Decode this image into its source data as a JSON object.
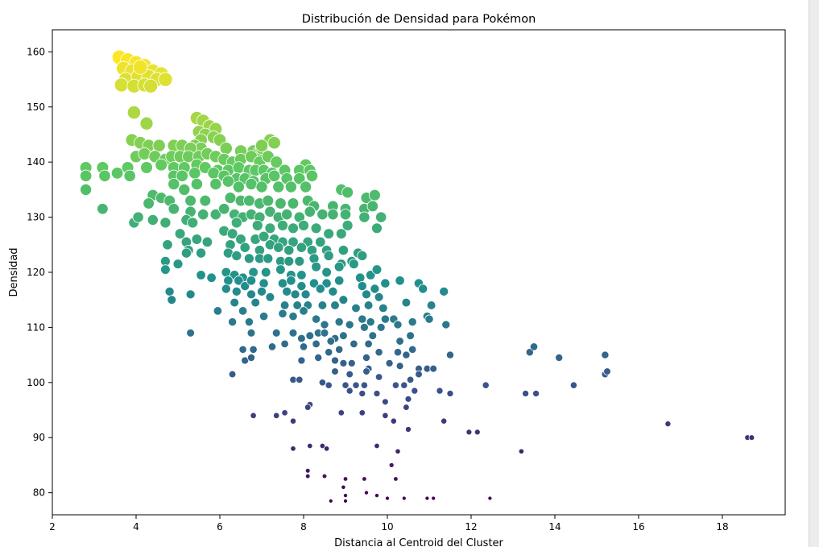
{
  "chart_data": {
    "type": "scatter",
    "title": "Distribución de Densidad para Pokémon",
    "xlabel": "Distancia al Centroid del Cluster",
    "ylabel": "Densidad",
    "xlim": [
      2,
      19.5
    ],
    "ylim": [
      76,
      164
    ],
    "xticks": [
      2,
      4,
      6,
      8,
      10,
      12,
      14,
      16,
      18
    ],
    "yticks": [
      80,
      90,
      100,
      110,
      120,
      130,
      140,
      150,
      160
    ],
    "grid": false,
    "legend": "none",
    "colormap": "viridis",
    "color_encodes": "y",
    "size_encodes": "y",
    "points": [
      [
        3.6,
        159
      ],
      [
        3.8,
        158.5
      ],
      [
        4.0,
        158
      ],
      [
        4.2,
        157.5
      ],
      [
        3.7,
        157
      ],
      [
        3.9,
        156.5
      ],
      [
        4.4,
        156.5
      ],
      [
        4.6,
        156
      ],
      [
        3.75,
        155
      ],
      [
        4.05,
        155.5
      ],
      [
        4.3,
        155.5
      ],
      [
        4.5,
        155
      ],
      [
        3.65,
        154
      ],
      [
        3.95,
        153.8
      ],
      [
        4.2,
        154
      ],
      [
        4.7,
        155
      ],
      [
        4.1,
        157.2
      ],
      [
        4.35,
        153.8
      ],
      [
        3.95,
        149
      ],
      [
        4.25,
        147
      ],
      [
        5.45,
        148
      ],
      [
        5.6,
        147.5
      ],
      [
        5.75,
        146.5
      ],
      [
        5.9,
        146
      ],
      [
        5.5,
        145.5
      ],
      [
        5.65,
        145
      ],
      [
        5.85,
        144.5
      ],
      [
        5.55,
        144
      ],
      [
        6.0,
        144
      ],
      [
        7.2,
        144
      ],
      [
        5.4,
        143
      ],
      [
        5.55,
        142.5
      ],
      [
        3.9,
        144
      ],
      [
        4.1,
        143.5
      ],
      [
        4.3,
        143
      ],
      [
        4.55,
        143
      ],
      [
        4.9,
        143
      ],
      [
        5.1,
        143
      ],
      [
        5.3,
        142.5
      ],
      [
        6.15,
        142.5
      ],
      [
        6.5,
        142
      ],
      [
        6.8,
        142
      ],
      [
        6.95,
        142
      ],
      [
        7.0,
        142.5
      ],
      [
        7.3,
        143.5
      ],
      [
        7.0,
        143
      ],
      [
        4.0,
        141
      ],
      [
        4.2,
        141.5
      ],
      [
        4.45,
        141
      ],
      [
        4.7,
        140.5
      ],
      [
        4.85,
        141
      ],
      [
        5.05,
        141
      ],
      [
        5.25,
        141
      ],
      [
        5.5,
        141
      ],
      [
        5.7,
        141.5
      ],
      [
        5.9,
        141
      ],
      [
        6.1,
        140.5
      ],
      [
        6.3,
        140
      ],
      [
        6.5,
        140.5
      ],
      [
        6.75,
        141
      ],
      [
        6.95,
        140
      ],
      [
        7.15,
        141
      ],
      [
        7.35,
        140
      ],
      [
        8.05,
        139.5
      ],
      [
        2.8,
        139
      ],
      [
        3.2,
        139
      ],
      [
        3.8,
        139
      ],
      [
        4.25,
        139
      ],
      [
        4.6,
        139.5
      ],
      [
        4.9,
        139
      ],
      [
        5.15,
        139
      ],
      [
        5.45,
        139.5
      ],
      [
        5.65,
        139
      ],
      [
        5.95,
        138.5
      ],
      [
        6.2,
        138.5
      ],
      [
        6.45,
        139
      ],
      [
        6.7,
        138.5
      ],
      [
        6.85,
        138.5
      ],
      [
        7.05,
        138.5
      ],
      [
        7.25,
        138
      ],
      [
        7.55,
        138.5
      ],
      [
        7.9,
        138.5
      ],
      [
        8.15,
        138.5
      ],
      [
        2.8,
        137.5
      ],
      [
        3.25,
        137.5
      ],
      [
        3.55,
        138
      ],
      [
        3.85,
        137.5
      ],
      [
        4.9,
        137.5
      ],
      [
        5.1,
        137.5
      ],
      [
        5.4,
        138
      ],
      [
        5.85,
        138
      ],
      [
        6.1,
        137.5
      ],
      [
        6.4,
        137
      ],
      [
        6.6,
        137
      ],
      [
        6.8,
        136.5
      ],
      [
        7.1,
        137
      ],
      [
        7.3,
        137.5
      ],
      [
        7.6,
        137
      ],
      [
        7.9,
        137
      ],
      [
        8.2,
        137.5
      ],
      [
        2.8,
        135
      ],
      [
        4.9,
        136
      ],
      [
        5.15,
        135
      ],
      [
        5.45,
        136
      ],
      [
        5.9,
        136
      ],
      [
        6.2,
        136.5
      ],
      [
        6.45,
        135.5
      ],
      [
        6.75,
        136
      ],
      [
        7.0,
        135.5
      ],
      [
        7.4,
        135.5
      ],
      [
        7.7,
        135.5
      ],
      [
        8.05,
        135.5
      ],
      [
        8.9,
        135
      ],
      [
        9.05,
        134.5
      ],
      [
        9.5,
        133.5
      ],
      [
        9.7,
        134
      ],
      [
        4.4,
        134
      ],
      [
        4.6,
        133.5
      ],
      [
        4.8,
        133
      ],
      [
        5.3,
        133
      ],
      [
        5.65,
        133
      ],
      [
        6.25,
        133.5
      ],
      [
        6.5,
        133
      ],
      [
        6.7,
        133
      ],
      [
        6.95,
        132.5
      ],
      [
        7.15,
        133
      ],
      [
        7.45,
        132.5
      ],
      [
        7.75,
        132.5
      ],
      [
        8.1,
        133
      ],
      [
        8.25,
        132
      ],
      [
        8.7,
        132
      ],
      [
        9.0,
        131.5
      ],
      [
        9.45,
        131.5
      ],
      [
        9.65,
        132
      ],
      [
        3.2,
        131.5
      ],
      [
        4.3,
        132.5
      ],
      [
        4.9,
        131.5
      ],
      [
        5.3,
        131
      ],
      [
        5.6,
        130.5
      ],
      [
        5.9,
        130.5
      ],
      [
        6.1,
        131.5
      ],
      [
        6.35,
        130.5
      ],
      [
        6.55,
        130
      ],
      [
        6.75,
        130.5
      ],
      [
        6.95,
        130
      ],
      [
        7.2,
        131
      ],
      [
        7.4,
        130
      ],
      [
        7.6,
        130.5
      ],
      [
        7.9,
        130
      ],
      [
        8.15,
        131
      ],
      [
        8.45,
        130.5
      ],
      [
        8.7,
        130.5
      ],
      [
        9.0,
        130.5
      ],
      [
        9.45,
        130
      ],
      [
        9.85,
        130
      ],
      [
        3.95,
        129
      ],
      [
        4.05,
        130
      ],
      [
        4.4,
        129.5
      ],
      [
        4.7,
        129
      ],
      [
        5.2,
        129.5
      ],
      [
        5.35,
        129
      ],
      [
        6.4,
        129
      ],
      [
        6.9,
        128.5
      ],
      [
        7.2,
        128
      ],
      [
        7.5,
        128.5
      ],
      [
        7.75,
        128
      ],
      [
        8.0,
        128.5
      ],
      [
        8.3,
        128
      ],
      [
        9.05,
        128.5
      ],
      [
        9.75,
        128
      ],
      [
        5.05,
        127
      ],
      [
        6.1,
        127.5
      ],
      [
        6.3,
        127
      ],
      [
        6.5,
        126
      ],
      [
        6.85,
        126
      ],
      [
        7.05,
        126.5
      ],
      [
        7.3,
        126
      ],
      [
        7.5,
        125.5
      ],
      [
        7.75,
        125.5
      ],
      [
        8.1,
        125.5
      ],
      [
        8.4,
        125.5
      ],
      [
        8.6,
        127
      ],
      [
        8.9,
        127
      ],
      [
        4.75,
        125
      ],
      [
        5.2,
        125.5
      ],
      [
        5.45,
        126
      ],
      [
        5.7,
        125.5
      ],
      [
        6.25,
        125
      ],
      [
        6.6,
        124.5
      ],
      [
        6.95,
        124
      ],
      [
        7.2,
        125
      ],
      [
        7.4,
        124.5
      ],
      [
        7.65,
        124
      ],
      [
        7.95,
        124.5
      ],
      [
        8.2,
        124
      ],
      [
        8.55,
        124
      ],
      [
        8.95,
        124
      ],
      [
        9.3,
        123.5
      ],
      [
        5.25,
        124
      ],
      [
        5.55,
        123.5
      ],
      [
        6.2,
        123.5
      ],
      [
        6.4,
        123
      ],
      [
        6.7,
        122.5
      ],
      [
        6.95,
        122.5
      ],
      [
        7.15,
        122.5
      ],
      [
        7.45,
        122
      ],
      [
        7.65,
        122
      ],
      [
        7.9,
        122
      ],
      [
        8.25,
        122.5
      ],
      [
        8.6,
        123
      ],
      [
        8.9,
        121.5
      ],
      [
        9.15,
        122
      ],
      [
        9.4,
        123
      ],
      [
        4.7,
        122
      ],
      [
        4.7,
        120.5
      ],
      [
        5.0,
        121.5
      ],
      [
        5.2,
        123.5
      ],
      [
        5.55,
        119.5
      ],
      [
        6.15,
        120
      ],
      [
        6.35,
        119.5
      ],
      [
        6.55,
        119
      ],
      [
        6.8,
        120
      ],
      [
        7.1,
        120
      ],
      [
        7.45,
        120.5
      ],
      [
        7.7,
        119.5
      ],
      [
        7.95,
        119.5
      ],
      [
        8.3,
        121
      ],
      [
        8.55,
        120
      ],
      [
        8.85,
        121
      ],
      [
        9.2,
        121.5
      ],
      [
        9.35,
        119
      ],
      [
        9.6,
        119.5
      ],
      [
        9.75,
        120.5
      ],
      [
        9.95,
        118
      ],
      [
        10.3,
        118.5
      ],
      [
        10.75,
        118
      ],
      [
        5.8,
        119
      ],
      [
        6.2,
        118.5
      ],
      [
        6.45,
        118.5
      ],
      [
        6.6,
        117.5
      ],
      [
        6.75,
        118.5
      ],
      [
        7.05,
        118
      ],
      [
        7.5,
        118
      ],
      [
        7.7,
        118.5
      ],
      [
        7.95,
        117.5
      ],
      [
        8.25,
        118
      ],
      [
        8.55,
        118
      ],
      [
        8.85,
        118.5
      ],
      [
        9.4,
        117.5
      ],
      [
        9.7,
        117
      ],
      [
        10.85,
        117
      ],
      [
        4.8,
        116.5
      ],
      [
        5.3,
        116
      ],
      [
        6.15,
        117
      ],
      [
        6.4,
        116.5
      ],
      [
        6.75,
        116
      ],
      [
        7.0,
        116.5
      ],
      [
        7.6,
        116.5
      ],
      [
        7.8,
        116
      ],
      [
        8.05,
        116
      ],
      [
        8.4,
        117
      ],
      [
        8.7,
        116.5
      ],
      [
        9.5,
        116
      ],
      [
        9.8,
        115.5
      ],
      [
        11.35,
        116.5
      ],
      [
        4.85,
        115
      ],
      [
        5.95,
        113
      ],
      [
        6.35,
        114.5
      ],
      [
        6.55,
        113
      ],
      [
        6.85,
        114.5
      ],
      [
        7.2,
        115.5
      ],
      [
        7.55,
        114
      ],
      [
        7.85,
        114
      ],
      [
        8.1,
        114
      ],
      [
        8.45,
        114
      ],
      [
        8.75,
        114
      ],
      [
        8.95,
        115
      ],
      [
        9.25,
        113.5
      ],
      [
        9.55,
        114
      ],
      [
        9.9,
        113.5
      ],
      [
        10.45,
        114.5
      ],
      [
        11.05,
        114
      ],
      [
        6.3,
        111
      ],
      [
        6.7,
        111
      ],
      [
        7.05,
        112
      ],
      [
        7.5,
        112.5
      ],
      [
        7.75,
        112
      ],
      [
        8.0,
        113
      ],
      [
        8.3,
        111.5
      ],
      [
        8.5,
        110.5
      ],
      [
        8.85,
        111
      ],
      [
        9.1,
        110.5
      ],
      [
        9.4,
        111.5
      ],
      [
        9.6,
        111
      ],
      [
        9.95,
        111.5
      ],
      [
        10.15,
        111.5
      ],
      [
        10.6,
        111
      ],
      [
        10.95,
        112
      ],
      [
        11.0,
        111.5
      ],
      [
        11.4,
        110.5
      ],
      [
        5.3,
        109
      ],
      [
        6.75,
        109
      ],
      [
        7.35,
        109
      ],
      [
        7.75,
        109
      ],
      [
        7.95,
        108
      ],
      [
        8.15,
        108.5
      ],
      [
        8.35,
        109
      ],
      [
        8.5,
        109
      ],
      [
        8.75,
        108
      ],
      [
        8.95,
        108.5
      ],
      [
        9.45,
        110
      ],
      [
        9.65,
        108.5
      ],
      [
        9.85,
        110
      ],
      [
        10.25,
        110.5
      ],
      [
        10.55,
        108.5
      ],
      [
        7.25,
        106.5
      ],
      [
        7.55,
        107
      ],
      [
        8.0,
        106.5
      ],
      [
        8.3,
        107
      ],
      [
        8.65,
        107.5
      ],
      [
        8.85,
        106
      ],
      [
        9.2,
        107
      ],
      [
        9.55,
        107
      ],
      [
        10.3,
        107.5
      ],
      [
        10.6,
        106
      ],
      [
        6.55,
        106
      ],
      [
        6.8,
        106
      ],
      [
        8.6,
        105.5
      ],
      [
        9.5,
        104.5
      ],
      [
        9.8,
        105.5
      ],
      [
        10.25,
        105.5
      ],
      [
        10.45,
        105
      ],
      [
        11.5,
        105
      ],
      [
        13.4,
        105.5
      ],
      [
        13.5,
        106.5
      ],
      [
        15.2,
        105
      ],
      [
        6.6,
        104
      ],
      [
        6.75,
        104.5
      ],
      [
        7.95,
        104
      ],
      [
        8.35,
        104.5
      ],
      [
        8.75,
        104
      ],
      [
        8.95,
        103.5
      ],
      [
        9.15,
        103.5
      ],
      [
        9.55,
        102.5
      ],
      [
        10.05,
        103.5
      ],
      [
        10.3,
        103
      ],
      [
        10.75,
        102.5
      ],
      [
        10.95,
        102.5
      ],
      [
        14.1,
        104.5
      ],
      [
        6.3,
        101.5
      ],
      [
        8.75,
        102
      ],
      [
        9.1,
        101.5
      ],
      [
        9.5,
        102
      ],
      [
        9.8,
        101
      ],
      [
        10.55,
        100.5
      ],
      [
        10.75,
        101.5
      ],
      [
        11.1,
        102.5
      ],
      [
        15.2,
        101.5
      ],
      [
        15.25,
        102
      ],
      [
        7.75,
        100.5
      ],
      [
        7.9,
        100.5
      ],
      [
        8.45,
        100
      ],
      [
        8.6,
        99.5
      ],
      [
        9.0,
        99.5
      ],
      [
        9.25,
        99.5
      ],
      [
        9.45,
        99.5
      ],
      [
        10.2,
        99.5
      ],
      [
        10.4,
        99.5
      ],
      [
        12.35,
        99.5
      ],
      [
        14.45,
        99.5
      ],
      [
        9.1,
        98.5
      ],
      [
        9.4,
        98
      ],
      [
        9.75,
        98
      ],
      [
        10.65,
        98.5
      ],
      [
        11.5,
        98
      ],
      [
        13.3,
        98
      ],
      [
        13.55,
        98
      ],
      [
        8.15,
        96
      ],
      [
        9.95,
        96.5
      ],
      [
        10.45,
        95.5
      ],
      [
        10.5,
        97
      ],
      [
        11.25,
        98.5
      ],
      [
        6.8,
        94
      ],
      [
        7.55,
        94.5
      ],
      [
        8.1,
        95.5
      ],
      [
        8.9,
        94.5
      ],
      [
        9.4,
        94.5
      ],
      [
        9.95,
        94
      ],
      [
        10.15,
        93
      ],
      [
        10.5,
        91.5
      ],
      [
        11.35,
        93
      ],
      [
        16.7,
        92.5
      ],
      [
        7.75,
        93
      ],
      [
        7.35,
        94
      ],
      [
        11.95,
        91
      ],
      [
        12.15,
        91
      ],
      [
        13.2,
        87.5
      ],
      [
        18.6,
        90
      ],
      [
        18.7,
        90
      ],
      [
        7.75,
        88
      ],
      [
        8.15,
        88.5
      ],
      [
        8.45,
        88.5
      ],
      [
        8.55,
        88
      ],
      [
        9.75,
        88.5
      ],
      [
        10.25,
        87.5
      ],
      [
        10.1,
        85
      ],
      [
        8.1,
        84
      ],
      [
        8.1,
        83
      ],
      [
        8.5,
        83
      ],
      [
        9.0,
        82.5
      ],
      [
        9.45,
        82.5
      ],
      [
        10.2,
        82.5
      ],
      [
        8.95,
        81
      ],
      [
        9.5,
        80
      ],
      [
        9.75,
        79.5
      ],
      [
        9.0,
        79.5
      ],
      [
        10.4,
        79
      ],
      [
        10.0,
        79
      ],
      [
        10.95,
        79
      ],
      [
        11.1,
        79
      ],
      [
        12.45,
        79
      ],
      [
        8.65,
        78.5
      ],
      [
        9.0,
        78.5
      ]
    ]
  }
}
